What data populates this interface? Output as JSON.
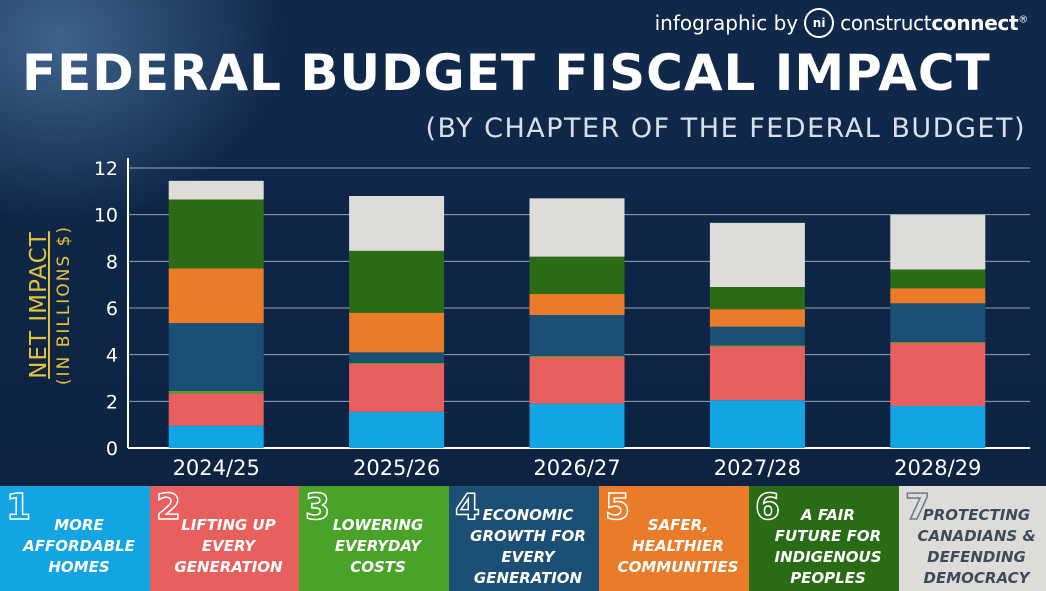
{
  "header": {
    "credit_prefix": "infographic by",
    "credit_logo": "ni",
    "credit_brand_light": "construct",
    "credit_brand_bold": "connect",
    "credit_mark": "®",
    "title": "FEDERAL BUDGET FISCAL IMPACT",
    "subtitle": "(BY CHAPTER OF THE FEDERAL BUDGET)"
  },
  "chart_data": {
    "type": "bar",
    "stacked": true,
    "title": "FEDERAL BUDGET FISCAL IMPACT",
    "subtitle": "(BY CHAPTER OF THE FEDERAL BUDGET)",
    "ylabel": "NET IMPACT",
    "ylabel_sub": "(IN BILLIONS $)",
    "xlabel": "",
    "ylim": [
      0,
      12
    ],
    "yticks": [
      0,
      2,
      4,
      6,
      8,
      10,
      12
    ],
    "grid": true,
    "categories": [
      "2024/25",
      "2025/26",
      "2026/27",
      "2027/28",
      "2028/29"
    ],
    "series": [
      {
        "name": "More Affordable Homes",
        "color": "#12a4e3",
        "values": [
          0.95,
          1.55,
          1.9,
          2.05,
          1.8
        ]
      },
      {
        "name": "Lifting Up Every Generation",
        "color": "#e8605e",
        "values": [
          1.4,
          2.05,
          2.0,
          2.3,
          2.7
        ]
      },
      {
        "name": "Lowering Everyday Costs",
        "color": "#4aa329",
        "values": [
          0.1,
          0.05,
          0.05,
          0.05,
          0.05
        ]
      },
      {
        "name": "Economic Growth For Every Generation",
        "color": "#1b4f75",
        "values": [
          2.9,
          0.45,
          1.75,
          0.8,
          1.65
        ]
      },
      {
        "name": "Safer, Healthier Communities",
        "color": "#ea7b28",
        "values": [
          2.35,
          1.7,
          0.9,
          0.75,
          0.65
        ]
      },
      {
        "name": "A Fair Future For Indigenous Peoples",
        "color": "#2a6b16",
        "values": [
          2.95,
          2.65,
          1.6,
          0.95,
          0.8
        ]
      },
      {
        "name": "Protecting Canadians & Defending Democracy",
        "color": "#dedcd9",
        "values": [
          0.8,
          2.35,
          2.5,
          2.75,
          2.35
        ]
      }
    ]
  },
  "legend": [
    {
      "number": "1",
      "label": "More\nAffordable\nHomes",
      "color": "#12a4e3",
      "light": false
    },
    {
      "number": "2",
      "label": "Lifting Up\nEvery\nGeneration",
      "color": "#e8605e",
      "light": false
    },
    {
      "number": "3",
      "label": "Lowering\nEveryday\nCosts",
      "color": "#4aa329",
      "light": false
    },
    {
      "number": "4",
      "label": "Economic\nGrowth For\nEvery\nGeneration",
      "color": "#1b4f75",
      "light": false
    },
    {
      "number": "5",
      "label": "Safer,\nHealthier\nCommunities",
      "color": "#ea7b28",
      "light": false
    },
    {
      "number": "6",
      "label": "A Fair\nFuture For\nIndigenous\nPeoples",
      "color": "#2a6b16",
      "light": false
    },
    {
      "number": "7",
      "label": "Protecting\nCanadians &\nDefending\nDemocracy",
      "color": "#dedcd9",
      "light": true
    }
  ]
}
